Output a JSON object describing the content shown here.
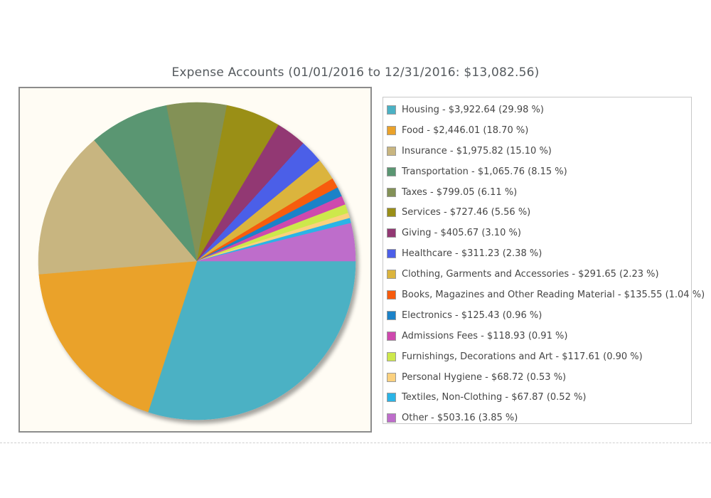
{
  "chart_data": {
    "type": "pie",
    "title": "Expense Accounts (01/01/2016 to 12/31/2016: $13,082.56)",
    "legend_position": "right",
    "slices": [
      {
        "name": "Housing",
        "value": 3922.64,
        "percent": 29.98,
        "color": "#4bb1c4",
        "label": "Housing - $3,922.64 (29.98 %)"
      },
      {
        "name": "Food",
        "value": 2446.01,
        "percent": 18.7,
        "color": "#eaa22b",
        "label": "Food - $2,446.01 (18.70 %)"
      },
      {
        "name": "Insurance",
        "value": 1975.82,
        "percent": 15.1,
        "color": "#c8b580",
        "label": "Insurance - $1,975.82 (15.10 %)"
      },
      {
        "name": "Transportation",
        "value": 1065.76,
        "percent": 8.15,
        "color": "#5a9672",
        "label": "Transportation - $1,065.76 (8.15 %)"
      },
      {
        "name": "Taxes",
        "value": 799.05,
        "percent": 6.11,
        "color": "#839157",
        "label": "Taxes - $799.05 (6.11 %)"
      },
      {
        "name": "Services",
        "value": 727.46,
        "percent": 5.56,
        "color": "#9a8f18",
        "label": "Services - $727.46 (5.56 %)"
      },
      {
        "name": "Giving",
        "value": 405.67,
        "percent": 3.1,
        "color": "#923873",
        "label": "Giving - $405.67 (3.10 %)"
      },
      {
        "name": "Healthcare",
        "value": 311.23,
        "percent": 2.38,
        "color": "#4c5fe8",
        "label": "Healthcare - $311.23 (2.38 %)"
      },
      {
        "name": "Clothing, Garments and Accessories",
        "value": 291.65,
        "percent": 2.23,
        "color": "#dbb43d",
        "label": "Clothing, Garments and Accessories - $291.65 (2.23 %)"
      },
      {
        "name": "Books, Magazines and Other Reading Material",
        "value": 135.55,
        "percent": 1.04,
        "color": "#f75b0d",
        "label": "Books, Magazines and Other Reading Material - $135.55 (1.04 %)"
      },
      {
        "name": "Electronics",
        "value": 125.43,
        "percent": 0.96,
        "color": "#1b82c8",
        "label": "Electronics - $125.43 (0.96 %)"
      },
      {
        "name": "Admissions Fees",
        "value": 118.93,
        "percent": 0.91,
        "color": "#ce49ae",
        "label": "Admissions Fees - $118.93 (0.91 %)"
      },
      {
        "name": "Furnishings, Decorations and Art",
        "value": 117.61,
        "percent": 0.9,
        "color": "#cde84b",
        "label": "Furnishings, Decorations and Art - $117.61 (0.90 %)"
      },
      {
        "name": "Personal Hygiene",
        "value": 68.72,
        "percent": 0.53,
        "color": "#fbd17e",
        "label": "Personal Hygiene - $68.72 (0.53 %)"
      },
      {
        "name": "Textiles, Non-Clothing",
        "value": 67.87,
        "percent": 0.52,
        "color": "#2bb4e6",
        "label": "Textiles, Non-Clothing - $67.87 (0.52 %)"
      },
      {
        "name": "Other",
        "value": 503.16,
        "percent": 3.85,
        "color": "#be6dcb",
        "label": "Other - $503.16 (3.85 %)"
      }
    ]
  }
}
